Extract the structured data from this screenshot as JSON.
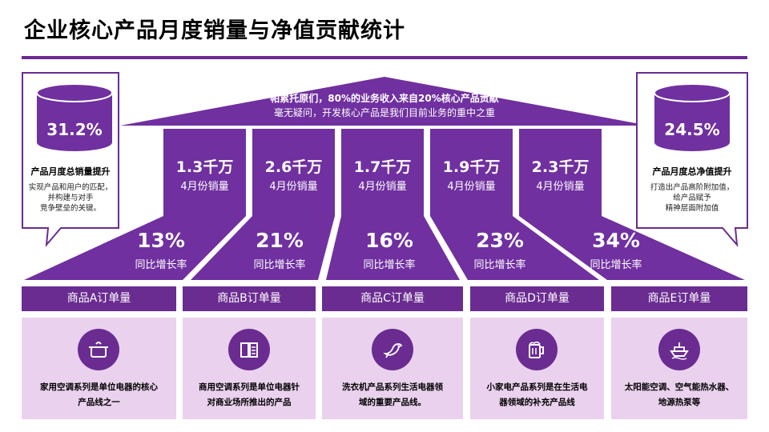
{
  "title": "企业核心产品月度销量与净值贡献统计",
  "roof": {
    "line1": "帕累托原们，80%的业务收入来自20%核心产品贡献",
    "line2": "毫无疑问，开发核心产品是我们目前业务的重中之重"
  },
  "left_box": {
    "value": "31.2%",
    "title": "产品月度总销量提升",
    "desc": [
      "实现产品和用户的匹配，",
      "并构建与对手",
      "竞争壁垒的关键。"
    ]
  },
  "right_box": {
    "value": "24.5%",
    "title": "产品月度总净值提升",
    "desc": [
      "打造出产品高阶附加值，",
      "给产品赋予",
      "精神层面附加值"
    ]
  },
  "pillars": [
    {
      "value": "1.3千万",
      "label": "4月份销量"
    },
    {
      "value": "2.6千万",
      "label": "4月份销量"
    },
    {
      "value": "1.7千万",
      "label": "4月份销量"
    },
    {
      "value": "1.9千万",
      "label": "4月份销量"
    },
    {
      "value": "2.3千万",
      "label": "4月份销量"
    }
  ],
  "growth": [
    {
      "value": "13%",
      "label": "同比增长率"
    },
    {
      "value": "21%",
      "label": "同比增长率"
    },
    {
      "value": "16%",
      "label": "同比增长率"
    },
    {
      "value": "23%",
      "label": "同比增长率"
    },
    {
      "value": "34%",
      "label": "同比增长率"
    }
  ],
  "products": [
    {
      "header": "商品A订单量",
      "icon": "cooking-pot-icon",
      "text": [
        "家用空调系列是单位电器的核心",
        "产品线之一"
      ]
    },
    {
      "header": "商品B订单量",
      "icon": "open-book-icon",
      "text": [
        "商用空调系列是单位电器针",
        "对商业场所推出的产品"
      ]
    },
    {
      "header": "商品C订单量",
      "icon": "bird-icon",
      "text": [
        "洗衣机产品系列生活电器领",
        "域的重要产品线。"
      ]
    },
    {
      "header": "商品D订单量",
      "icon": "beer-mug-icon",
      "text": [
        "小家电产品系列是在生活电",
        "器领域的补充产品线"
      ]
    },
    {
      "header": "商品E订单量",
      "icon": "boat-icon",
      "text": [
        "太阳能空调、空气能热水器、",
        "地源热泵等"
      ]
    }
  ],
  "colors": {
    "accent": "#6a2c91",
    "card_bg": "#ead1ee",
    "bar_bg": "#7030a0"
  }
}
